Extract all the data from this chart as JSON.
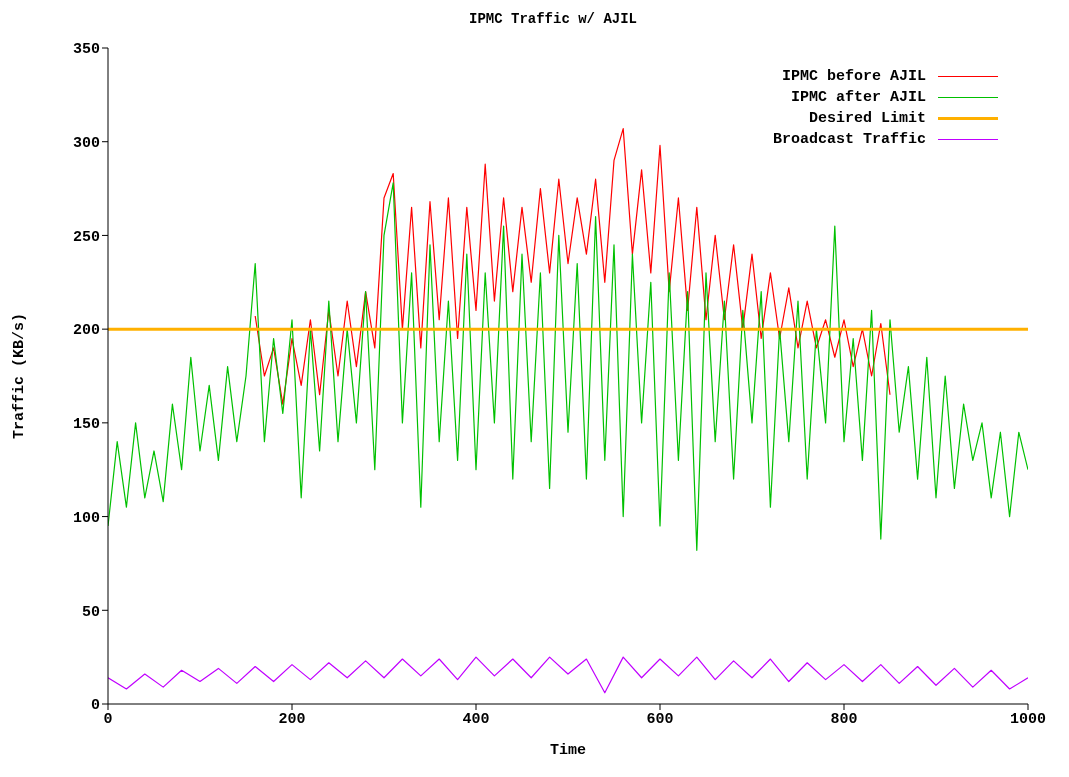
{
  "chart_data": {
    "type": "line",
    "title": "IPMC Traffic w/ AJIL",
    "xlabel": "Time",
    "ylabel": "Traffic (KB/s)",
    "xlim": [
      0,
      1000
    ],
    "xticks": [
      0,
      200,
      400,
      600,
      800,
      1000
    ],
    "ylim": [
      0,
      350
    ],
    "yticks": [
      0,
      50,
      100,
      150,
      200,
      250,
      300,
      350
    ],
    "grid": false,
    "legend": "top right",
    "marker": "none",
    "line_style": "solid",
    "series": [
      {
        "name": "IPMC before AJIL",
        "color": "#ff0000",
        "x": [
          160,
          170,
          180,
          190,
          200,
          210,
          220,
          230,
          240,
          250,
          260,
          270,
          280,
          290,
          300,
          310,
          320,
          330,
          340,
          350,
          360,
          370,
          380,
          390,
          400,
          410,
          420,
          430,
          440,
          450,
          460,
          470,
          480,
          490,
          500,
          510,
          520,
          530,
          540,
          550,
          560,
          570,
          580,
          590,
          600,
          610,
          620,
          630,
          640,
          650,
          660,
          670,
          680,
          690,
          700,
          710,
          720,
          730,
          740,
          750,
          760,
          770,
          780,
          790,
          800,
          810,
          820,
          830,
          840,
          850
        ],
        "values": [
          207,
          175,
          190,
          160,
          195,
          170,
          205,
          165,
          210,
          175,
          215,
          180,
          220,
          190,
          270,
          283,
          200,
          265,
          190,
          268,
          205,
          270,
          195,
          265,
          210,
          288,
          215,
          270,
          220,
          265,
          225,
          275,
          230,
          280,
          235,
          270,
          240,
          280,
          225,
          290,
          307,
          240,
          285,
          230,
          298,
          220,
          270,
          210,
          265,
          205,
          250,
          205,
          245,
          200,
          240,
          195,
          230,
          195,
          222,
          190,
          215,
          190,
          205,
          185,
          205,
          180,
          200,
          175,
          203,
          165
        ]
      },
      {
        "name": "IPMC after AJIL",
        "color": "#00c000",
        "x": [
          0,
          10,
          20,
          30,
          40,
          50,
          60,
          70,
          80,
          90,
          100,
          110,
          120,
          130,
          140,
          150,
          160,
          170,
          180,
          190,
          200,
          210,
          220,
          230,
          240,
          250,
          260,
          270,
          280,
          290,
          300,
          310,
          320,
          330,
          340,
          350,
          360,
          370,
          380,
          390,
          400,
          410,
          420,
          430,
          440,
          450,
          460,
          470,
          480,
          490,
          500,
          510,
          520,
          530,
          540,
          550,
          560,
          570,
          580,
          590,
          600,
          610,
          620,
          630,
          640,
          650,
          660,
          670,
          680,
          690,
          700,
          710,
          720,
          730,
          740,
          750,
          760,
          770,
          780,
          790,
          800,
          810,
          820,
          830,
          840,
          850,
          860,
          870,
          880,
          890,
          900,
          910,
          920,
          930,
          940,
          950,
          960,
          970,
          980,
          990,
          1000
        ],
        "values": [
          95,
          140,
          105,
          150,
          110,
          135,
          108,
          160,
          125,
          185,
          135,
          170,
          130,
          180,
          140,
          175,
          235,
          140,
          195,
          155,
          205,
          110,
          200,
          135,
          215,
          140,
          200,
          150,
          220,
          125,
          250,
          278,
          150,
          230,
          105,
          245,
          140,
          215,
          130,
          240,
          125,
          230,
          150,
          255,
          120,
          240,
          140,
          230,
          115,
          250,
          145,
          235,
          120,
          260,
          130,
          245,
          100,
          240,
          150,
          225,
          95,
          230,
          130,
          220,
          82,
          230,
          140,
          215,
          120,
          210,
          150,
          220,
          105,
          200,
          140,
          215,
          120,
          200,
          150,
          255,
          140,
          195,
          130,
          210,
          88,
          205,
          145,
          180,
          120,
          185,
          110,
          175,
          115,
          160,
          130,
          150,
          110,
          145,
          100,
          145,
          125
        ]
      },
      {
        "name": "Desired Limit",
        "color": "#ffb000",
        "x": [
          0,
          1000
        ],
        "values": [
          200,
          200
        ]
      },
      {
        "name": "Broadcast Traffic",
        "color": "#c000ff",
        "x": [
          0,
          20,
          40,
          60,
          80,
          100,
          120,
          140,
          160,
          180,
          200,
          220,
          240,
          260,
          280,
          300,
          320,
          340,
          360,
          380,
          400,
          420,
          440,
          460,
          480,
          500,
          520,
          540,
          560,
          580,
          600,
          620,
          640,
          660,
          680,
          700,
          720,
          740,
          760,
          780,
          800,
          820,
          840,
          860,
          880,
          900,
          920,
          940,
          960,
          980,
          1000
        ],
        "values": [
          14,
          8,
          16,
          9,
          18,
          12,
          19,
          11,
          20,
          12,
          21,
          13,
          22,
          14,
          23,
          14,
          24,
          15,
          24,
          13,
          25,
          15,
          24,
          14,
          25,
          16,
          24,
          6,
          25,
          14,
          24,
          15,
          25,
          13,
          23,
          14,
          24,
          12,
          22,
          13,
          21,
          12,
          21,
          11,
          20,
          10,
          19,
          9,
          18,
          8,
          14
        ]
      }
    ]
  }
}
